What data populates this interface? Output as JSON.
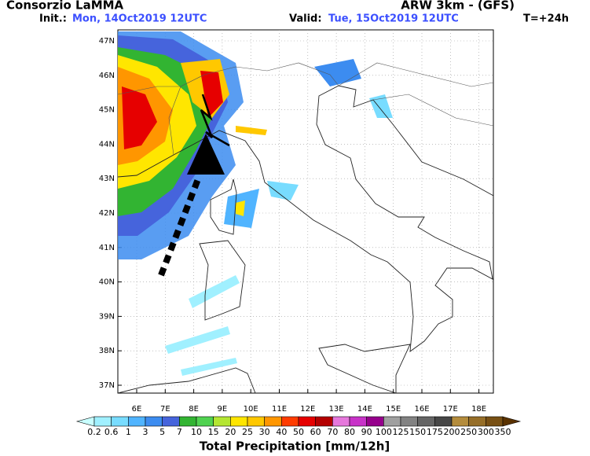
{
  "header": {
    "title": "Consorzio LaMMA",
    "model": "ARW 3km - (GFS)",
    "init_label": "Init.:",
    "init_value": "Mon, 14Oct2019 12UTC",
    "valid_label": "Valid:",
    "valid_value": "Tue, 15Oct2019 12UTC",
    "lead_time": "T=+24h"
  },
  "map": {
    "lat_labels": [
      "47N",
      "46N",
      "45N",
      "44N",
      "43N",
      "42N",
      "41N",
      "40N",
      "39N",
      "38N",
      "37N"
    ],
    "lon_labels": [
      "6E",
      "7E",
      "8E",
      "9E",
      "10E",
      "11E",
      "12E",
      "13E",
      "14E",
      "15E",
      "16E",
      "17E",
      "18E"
    ]
  },
  "colorbar": {
    "labels": [
      "0.2",
      "0.6",
      "1",
      "3",
      "5",
      "7",
      "10",
      "15",
      "20",
      "25",
      "30",
      "40",
      "50",
      "60",
      "70",
      "80",
      "90",
      "100",
      "125",
      "150",
      "175",
      "200",
      "250",
      "300",
      "350"
    ],
    "colors": [
      "#c8ffff",
      "#a0f0ff",
      "#78dcff",
      "#50b4ff",
      "#3c8cf0",
      "#4664dc",
      "#32b432",
      "#50d250",
      "#b4e632",
      "#ffe600",
      "#ffc800",
      "#ff9600",
      "#ff3c00",
      "#e60000",
      "#b40000",
      "#e678dc",
      "#c832c8",
      "#96008c",
      "#a0a0a0",
      "#828282",
      "#646464",
      "#464646",
      "#b48c3c",
      "#966e28",
      "#785014",
      "#5a3200"
    ],
    "title": "Total Precipitation [mm/12h]"
  }
}
